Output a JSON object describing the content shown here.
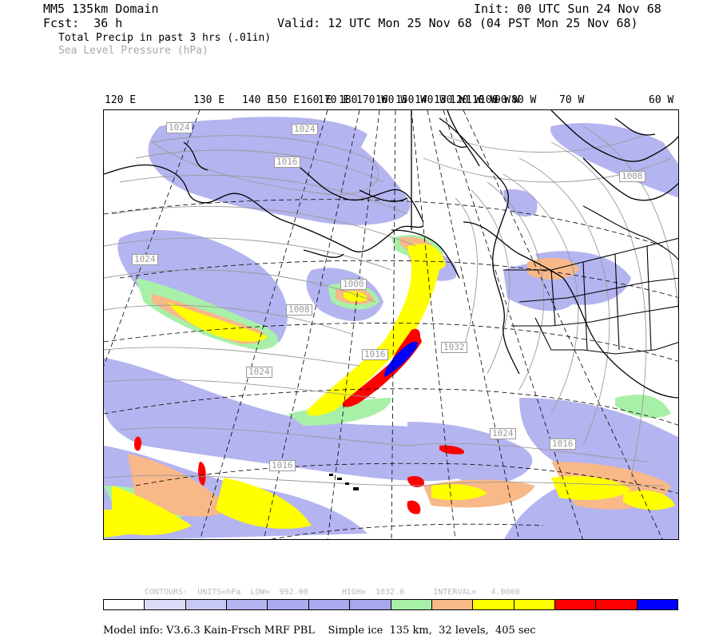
{
  "header": {
    "domain": "MM5 135km Domain",
    "init": "Init: 00 UTC Sun 24 Nov 68",
    "fcst": "Fcst:  36 h",
    "valid": "Valid: 12 UTC Mon 25 Nov 68 (04 PST Mon 25 Nov 68)",
    "field1": "Total Precip in past 3 hrs (.01in)",
    "field2": "Sea Level Pressure (hPa)"
  },
  "longitude_labels": [
    "120 E",
    "130 E",
    "140 E",
    "150 E",
    "160 E",
    "170 E",
    "180",
    "170 W",
    "160 W",
    "150 W",
    "140 W",
    "130 W",
    "120 W",
    "110 W",
    "100 W",
    "90 W",
    "80 W",
    "70 W",
    "60 W"
  ],
  "pressure_labels": [
    "1024",
    "1024",
    "1016",
    "1008",
    "1024",
    "1000",
    "1008",
    "1016",
    "1032",
    "1024",
    "1024",
    "1016",
    "1016"
  ],
  "contours": {
    "text": "CONTOURS:  UNITS=hPa  LOW=  992.00       HIGH=  1032.0      INTERVAL=   4.0000"
  },
  "colorbar": {
    "colors": [
      "#ffffff",
      "#dcdcf8",
      "#c8c8f4",
      "#b4b4f0",
      "#aaaaf0",
      "#aaaaf0",
      "#a6a6ee",
      "#a8f0a8",
      "#f8b888",
      "#ffff00",
      "#ffff00",
      "#ff0000",
      "#ff0000",
      "#0000ff"
    ]
  },
  "model_info": "Model info: V3.6.3 Kain-Frsch MRF PBL    Simple ice  135 km,  32 levels,  405 sec",
  "map_colors": {
    "light_blue": "#b4b4f0",
    "green": "#a8f0a8",
    "orange": "#f8b888",
    "yellow": "#ffff00",
    "red": "#ff0000",
    "blue": "#0000ff"
  }
}
